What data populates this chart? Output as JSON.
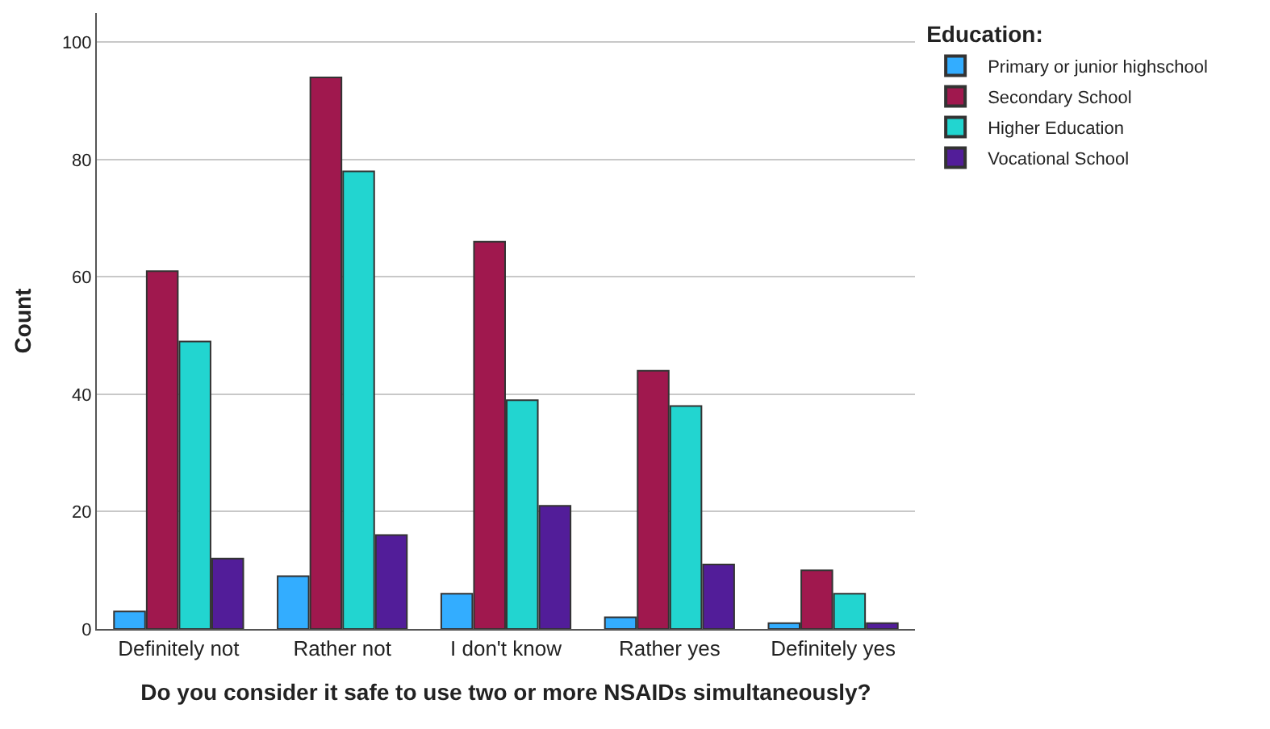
{
  "chart_data": {
    "type": "bar",
    "xlabel": "Do you consider it safe to use two or more NSAIDs simultaneously?",
    "ylabel": "Count",
    "legend_title": "Education:",
    "categories": [
      "Definitely not",
      "Rather not",
      "I don't know",
      "Rather yes",
      "Definitely yes"
    ],
    "series": [
      {
        "name": "Primary or junior highschool",
        "color": "#33adff",
        "values": [
          3,
          9,
          6,
          2,
          1
        ]
      },
      {
        "name": "Secondary School",
        "color": "#a0184e",
        "values": [
          61,
          94,
          66,
          44,
          10
        ]
      },
      {
        "name": "Higher Education",
        "color": "#22d5d0",
        "values": [
          49,
          78,
          39,
          38,
          6
        ]
      },
      {
        "name": "Vocational School",
        "color": "#521d99",
        "values": [
          12,
          16,
          21,
          11,
          1
        ]
      }
    ],
    "ylim": [
      0,
      105
    ],
    "yticks": [
      0,
      20,
      40,
      60,
      80,
      100
    ],
    "grid": "y",
    "legend": "top right"
  }
}
